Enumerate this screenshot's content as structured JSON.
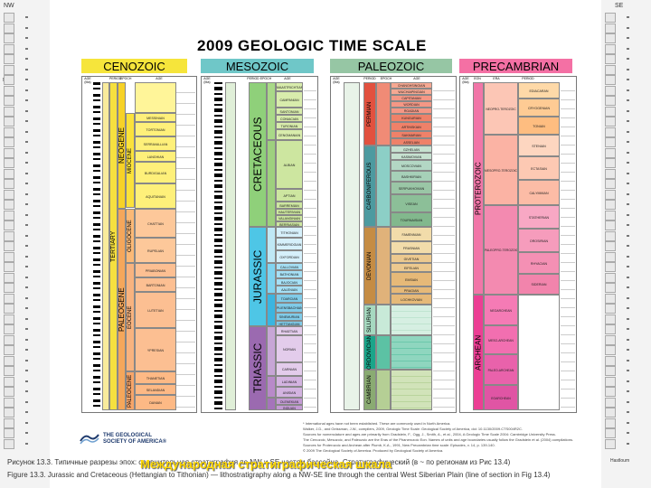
{
  "title": "2009 GEOLOGIC TIME SCALE",
  "eras": [
    {
      "label": "CENOZOIC",
      "color": "#f6e53b"
    },
    {
      "label": "MESOZOIC",
      "color": "#6fc7c8"
    },
    {
      "label": "PALEOZOIC",
      "color": "#96c6a4"
    },
    {
      "label": "PRECAMBRIAN",
      "color": "#f470a4"
    }
  ],
  "column_headers": {
    "age": "AGE (Ma)",
    "period": "PERIOD",
    "epoch": "EPOCH",
    "age_col": "AGE",
    "eon": "EON",
    "era": "ERA"
  },
  "cenozoic": {
    "periods": [
      "TERTIARY"
    ],
    "subperiods": [
      "NEOGENE",
      "PALEOGENE"
    ],
    "epochs": [
      "MIOCENE",
      "OLIGOCENE",
      "EOCENE",
      "PALEOCENE"
    ],
    "ages": [
      "MESSINIAN",
      "TORTONIAN",
      "SERRAVALLIAN",
      "LANGHIAN",
      "BURDIGALIAN",
      "AQUITANIAN",
      "CHATTIAN",
      "RUPELIAN",
      "PRIABONIAN",
      "BARTONIAN",
      "LUTETIAN",
      "YPRESIAN",
      "THANETIAN",
      "SELANDIAN",
      "DANIAN"
    ]
  },
  "mesozoic": {
    "periods": [
      "CRETACEOUS",
      "JURASSIC",
      "TRIASSIC"
    ],
    "ages": [
      "MAASTRICHTIAN",
      "CAMPANIAN",
      "SANTONIAN",
      "CONIACIAN",
      "TURONIAN",
      "CENOMANIAN",
      "ALBIAN",
      "APTIAN",
      "BARREMIAN",
      "HAUTERIVIAN",
      "VALANGINIAN",
      "BERRIASIAN",
      "TITHONIAN",
      "KIMMERIDGIAN",
      "OXFORDIAN",
      "CALLOVIAN",
      "BATHONIAN",
      "BAJOCIAN",
      "AALENIAN",
      "TOARCIAN",
      "PLIENSBACHIAN",
      "SINEMURIAN",
      "HETTANGIAN",
      "RHAETIAN",
      "NORIAN",
      "CARNIAN",
      "LADINIAN",
      "ANISIAN",
      "OLENEKIAN",
      "INDUAN"
    ]
  },
  "paleozoic": {
    "periods": [
      "PERMIAN",
      "CARBONIFEROUS",
      "DEVONIAN",
      "SILURIAN",
      "ORDOVICIAN",
      "CAMBRIAN"
    ],
    "ages": [
      "CHANGHSINGIAN",
      "WUCHIAPINGIAN",
      "CAPITANIAN",
      "WORDIAN",
      "ROADIAN",
      "KUNGURIAN",
      "ARTINSKIAN",
      "SAKMARIAN",
      "ASSELIAN",
      "GZHELIAN",
      "KASIMOVIAN",
      "MOSCOVIAN",
      "BASHKIRIAN",
      "SERPUKHOVIAN",
      "VISEAN",
      "TOURNAISIAN",
      "FAMENNIAN",
      "FRASNIAN",
      "GIVETIAN",
      "EIFELIAN",
      "EMSIAN",
      "PRAGIAN",
      "LOCHKOVIAN"
    ]
  },
  "precambrian": {
    "eons": [
      "PROTEROZOIC",
      "ARCHEAN"
    ],
    "eras": [
      "NEOPRO-TEROZOIC",
      "MESOPRO-TEROZOIC",
      "PALEOPRO-TEROZOIC",
      "NEOARCHEAN",
      "MESO-ARCHEAN",
      "PALEO-ARCHEAN",
      "EOARCHEAN"
    ],
    "periods": [
      "EDIACARAN",
      "CRYOGENIAN",
      "TONIAN",
      "STENIAN",
      "ECTASIAN",
      "CALYMMIAN",
      "STATHERIAN",
      "OROSIRIAN",
      "RHYACIAN",
      "SIDERIAN"
    ]
  },
  "footnotes": [
    "* International ages have not been established. These are commonly used in North America.",
    "Walker, J.D., and Geissman, J.W., compilers, 2009, Geologic Time Scale: Geological Society of America, doi: 10.1130/2009.CTS004R2C.",
    "Sources for nomenclature and ages are primarily from Gradstein, F., Ogg, J., Smith, A., et al., 2004, A Geologic Time Scale 2004: Cambridge University Press.",
    "The Cenozoic, Mesozoic, and Paleozoic are the Eras of the Phanerozoic Eon. Names of units and age boundaries usually follow the Gradstein et al. (2004) compilations.",
    "Sources for Proterozoic and Archean after Plumb, K.A., 1991, New Precambrian time scale: Episodes, v. 14, p. 139-140.",
    "© 2009 The Geological Society of America. Produced by Geological Society of America."
  ],
  "publisher": "THE GEOLOGICAL SOCIETY OF AMERICA®",
  "caption_lines": [
    "Рисунок 13.3. Типичные разрезы эпох: сравнительная стратиграфия по NW и SE частям бассейна. Стратиграфический (в ~ по регионам из Рис 13.4)",
    "Figure 13.3. Jurassic and Cretaceous (Hettangian to Tithonian) — lithostratigraphy along a NW-SE line through the central West Siberian Plain (line of section in Fig 13.4)"
  ],
  "overlay_text": "Международная стратиграфическая шкала",
  "strip_left": {
    "top_label": "NW",
    "unit": "Ma"
  },
  "strip_right": {
    "top_label": "SE",
    "bottom_label": "Hastloum"
  }
}
